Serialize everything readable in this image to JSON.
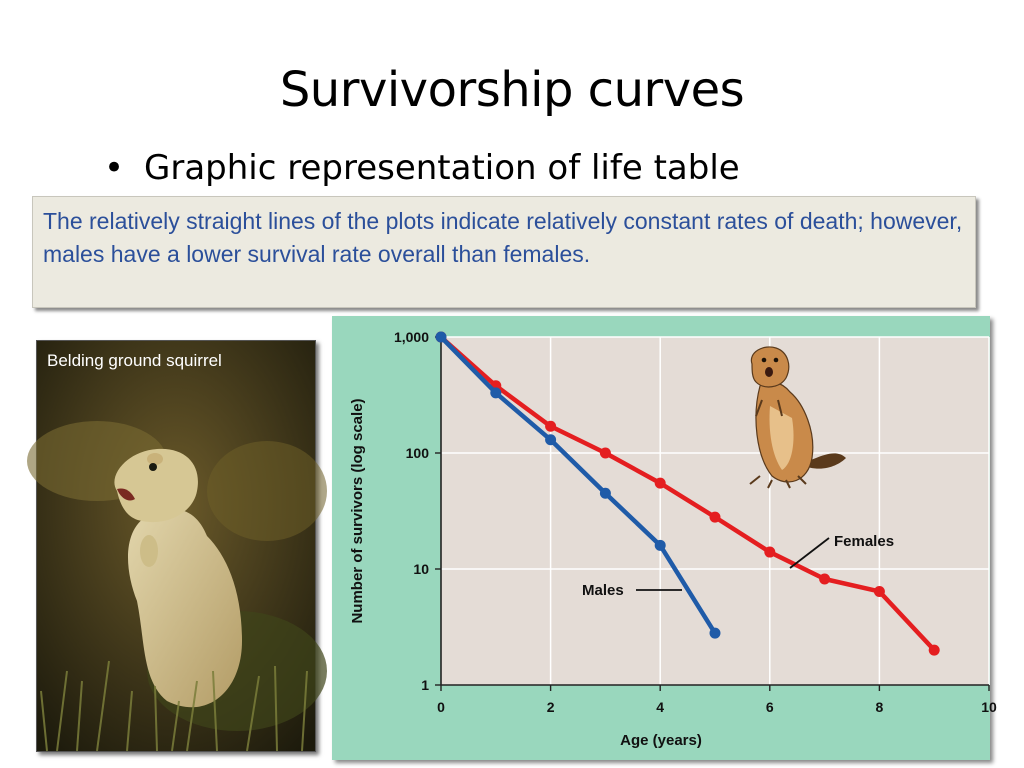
{
  "slide": {
    "title": "Survivorship curves",
    "bullet": "Graphic representation of life table",
    "caption": "The relatively straight lines of the plots indicate relatively constant rates of death; however, males have a lower survival rate overall than females.",
    "photo_label": "Belding ground squirrel"
  },
  "chart_data": {
    "type": "line",
    "xlabel": "Age (years)",
    "ylabel": "Number of survivors (log scale)",
    "x_ticks": [
      "0",
      "2",
      "4",
      "6",
      "8",
      "10"
    ],
    "y_ticks": [
      "1",
      "10",
      "100",
      "1,000"
    ],
    "xlim": [
      0,
      10
    ],
    "ylim": [
      1,
      1000
    ],
    "y_scale": "log",
    "grid": true,
    "series": [
      {
        "name": "Females",
        "color": "#e41e20",
        "x": [
          0,
          1,
          2,
          3,
          4,
          5,
          6,
          7,
          8,
          9
        ],
        "y": [
          1000,
          380,
          170,
          100,
          55,
          28,
          14,
          8.2,
          6.4,
          2
        ]
      },
      {
        "name": "Males",
        "color": "#1f5ba8",
        "x": [
          0,
          1,
          2,
          3,
          4,
          5
        ],
        "y": [
          1000,
          330,
          130,
          45,
          16,
          2.8
        ]
      }
    ],
    "annotations": {
      "females_label": "Females",
      "males_label": "Males"
    }
  }
}
